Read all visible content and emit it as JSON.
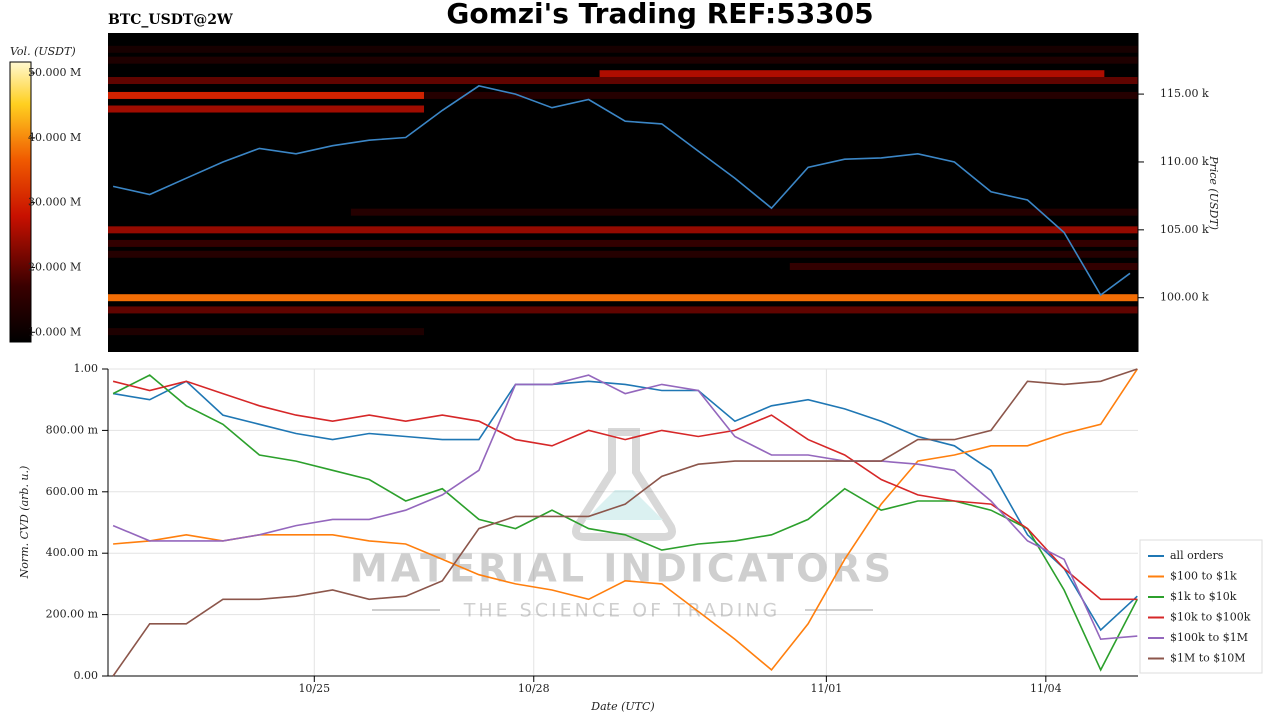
{
  "title": "Gomzi's Trading REF:53305",
  "watermark": {
    "brand": "MATERIAL INDICATORS",
    "tagline": "THE SCIENCE OF TRADING"
  },
  "chart_data": [
    {
      "type": "heatmap",
      "title": "BTC_USDT@2W",
      "colorbar_label": "Vol. (USDT)",
      "ylabel": "Price (USDT)",
      "clim": [
        8.5,
        51.7
      ],
      "cticks": [
        {
          "value": 10,
          "label": "10.000 M"
        },
        {
          "value": 20,
          "label": "20.000 M"
        },
        {
          "value": 30,
          "label": "30.000 M"
        },
        {
          "value": 40,
          "label": "40.000 M"
        },
        {
          "value": 50,
          "label": "50.000 M"
        }
      ],
      "xlim": [
        22.18,
        36.26
      ],
      "ylim": [
        96.0,
        119.5
      ],
      "yticks": [
        {
          "value": 100,
          "label": "100.00 k"
        },
        {
          "value": 105,
          "label": "105.00 k"
        },
        {
          "value": 110,
          "label": "110.00 k"
        },
        {
          "value": 115,
          "label": "115.00 k"
        }
      ],
      "bands": [
        {
          "price": 100,
          "start": 22.18,
          "end": 36.26,
          "volume": 38
        },
        {
          "price": 99.1,
          "start": 22.18,
          "end": 36.26,
          "volume": 20
        },
        {
          "price": 97.5,
          "start": 22.18,
          "end": 26.5,
          "volume": 13
        },
        {
          "price": 105,
          "start": 22.18,
          "end": 36.26,
          "volume": 24
        },
        {
          "price": 104,
          "start": 22.18,
          "end": 36.26,
          "volume": 16
        },
        {
          "price": 103.2,
          "start": 22.18,
          "end": 36.26,
          "volume": 14
        },
        {
          "price": 102.3,
          "start": 31.5,
          "end": 36.26,
          "volume": 16
        },
        {
          "price": 106.3,
          "start": 25.5,
          "end": 36.26,
          "volume": 14
        },
        {
          "price": 114.9,
          "start": 22.18,
          "end": 26.5,
          "volume": 30
        },
        {
          "price": 114.9,
          "start": 26.5,
          "end": 36.26,
          "volume": 14
        },
        {
          "price": 113.9,
          "start": 22.18,
          "end": 26.5,
          "volume": 25
        },
        {
          "price": 116.5,
          "start": 28.9,
          "end": 35.8,
          "volume": 26
        },
        {
          "price": 116.0,
          "start": 22.18,
          "end": 36.26,
          "volume": 20
        },
        {
          "price": 117.5,
          "start": 22.18,
          "end": 36.26,
          "volume": 13
        },
        {
          "price": 118.3,
          "start": 22.18,
          "end": 36.26,
          "volume": 12
        }
      ],
      "price": {
        "color": "#3b86c6",
        "x": [
          22.25,
          22.75,
          23.25,
          23.75,
          24.25,
          24.75,
          25.25,
          25.75,
          26.25,
          26.75,
          27.25,
          27.75,
          28.25,
          28.75,
          29.25,
          29.75,
          30.25,
          30.75,
          31.25,
          31.75,
          32.25,
          32.75,
          33.25,
          33.75,
          34.25,
          34.75,
          35.25,
          35.75,
          36.15
        ],
        "values": [
          108.2,
          107.6,
          108.8,
          110.0,
          111.0,
          110.6,
          111.2,
          111.6,
          111.8,
          113.8,
          115.6,
          115.0,
          114.0,
          114.6,
          113.0,
          112.8,
          110.8,
          108.8,
          106.6,
          109.6,
          110.2,
          110.3,
          110.6,
          110.0,
          107.8,
          107.2,
          104.8,
          100.2,
          101.8
        ]
      }
    },
    {
      "type": "line",
      "xlabel": "Date (UTC)",
      "ylabel": "Norm. CVD (arb. u.)",
      "xlim": [
        22.18,
        36.26
      ],
      "ylim": [
        0,
        1
      ],
      "xticks": [
        {
          "value": 25,
          "label": "10/25"
        },
        {
          "value": 28,
          "label": "10/28"
        },
        {
          "value": 32,
          "label": "11/01"
        },
        {
          "value": 35,
          "label": "11/04"
        }
      ],
      "yticks": [
        {
          "value": 0,
          "label": "0.00"
        },
        {
          "value": 0.2,
          "label": "200.00 m"
        },
        {
          "value": 0.4,
          "label": "400.00 m"
        },
        {
          "value": 0.6,
          "label": "600.00 m"
        },
        {
          "value": 0.8,
          "label": "800.00 m"
        },
        {
          "value": 1,
          "label": "1.00"
        }
      ],
      "grid": true,
      "x": [
        22.25,
        22.75,
        23.25,
        23.75,
        24.25,
        24.75,
        25.25,
        25.75,
        26.25,
        26.75,
        27.25,
        27.75,
        28.25,
        28.75,
        29.25,
        29.75,
        30.25,
        30.75,
        31.25,
        31.75,
        32.25,
        32.75,
        33.25,
        33.75,
        34.25,
        34.75,
        35.25,
        35.75,
        36.25
      ],
      "series": [
        {
          "name": "all orders",
          "color": "#1f77b4",
          "values": [
            0.92,
            0.9,
            0.96,
            0.85,
            0.82,
            0.79,
            0.77,
            0.79,
            0.78,
            0.77,
            0.77,
            0.95,
            0.95,
            0.96,
            0.95,
            0.93,
            0.93,
            0.83,
            0.88,
            0.9,
            0.87,
            0.83,
            0.78,
            0.75,
            0.67,
            0.46,
            0.35,
            0.15,
            0.26
          ]
        },
        {
          "name": "$100 to $1k",
          "color": "#ff7f0e",
          "values": [
            0.43,
            0.44,
            0.46,
            0.44,
            0.46,
            0.46,
            0.46,
            0.44,
            0.43,
            0.38,
            0.33,
            0.3,
            0.28,
            0.25,
            0.31,
            0.3,
            0.21,
            0.12,
            0.02,
            0.17,
            0.38,
            0.56,
            0.7,
            0.72,
            0.75,
            0.75,
            0.79,
            0.82,
            1.0
          ]
        },
        {
          "name": "$1k to $10k",
          "color": "#2ca02c",
          "values": [
            0.92,
            0.98,
            0.88,
            0.82,
            0.72,
            0.7,
            0.67,
            0.64,
            0.57,
            0.61,
            0.51,
            0.48,
            0.54,
            0.48,
            0.46,
            0.41,
            0.43,
            0.44,
            0.46,
            0.51,
            0.61,
            0.54,
            0.57,
            0.57,
            0.54,
            0.48,
            0.28,
            0.02,
            0.25
          ]
        },
        {
          "name": "$10k to $100k",
          "color": "#d62728",
          "values": [
            0.96,
            0.93,
            0.96,
            0.92,
            0.88,
            0.85,
            0.83,
            0.85,
            0.83,
            0.85,
            0.83,
            0.77,
            0.75,
            0.8,
            0.77,
            0.8,
            0.78,
            0.8,
            0.85,
            0.77,
            0.72,
            0.64,
            0.59,
            0.57,
            0.56,
            0.48,
            0.35,
            0.25,
            0.25
          ]
        },
        {
          "name": "$100k to $1M",
          "color": "#9467bd",
          "values": [
            0.49,
            0.44,
            0.44,
            0.44,
            0.46,
            0.49,
            0.51,
            0.51,
            0.54,
            0.59,
            0.67,
            0.95,
            0.95,
            0.98,
            0.92,
            0.95,
            0.93,
            0.78,
            0.72,
            0.72,
            0.7,
            0.7,
            0.69,
            0.67,
            0.57,
            0.44,
            0.38,
            0.12,
            0.13
          ]
        },
        {
          "name": "$1M to $10M",
          "color": "#8c564b",
          "values": [
            0.0,
            0.17,
            0.17,
            0.25,
            0.25,
            0.26,
            0.28,
            0.25,
            0.26,
            0.31,
            0.48,
            0.52,
            0.52,
            0.52,
            0.56,
            0.65,
            0.69,
            0.7,
            0.7,
            0.7,
            0.7,
            0.7,
            0.77,
            0.77,
            0.8,
            0.96,
            0.95,
            0.96,
            1.0
          ]
        }
      ]
    }
  ]
}
